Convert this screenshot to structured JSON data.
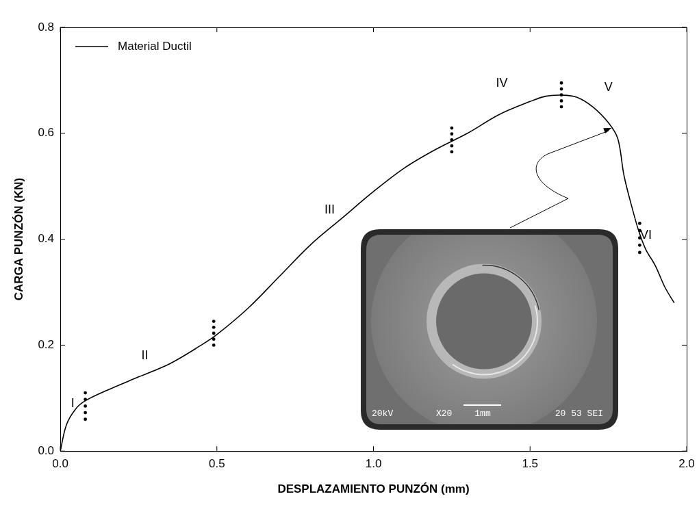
{
  "chart_data": {
    "type": "line",
    "x_label": "DESPLAZAMIENTO PUNZÓN (mm)",
    "y_label": "CARGA PUNZÓN (KN)",
    "x": [
      0,
      0.02,
      0.05,
      0.08,
      0.15,
      0.25,
      0.35,
      0.45,
      0.5,
      0.6,
      0.7,
      0.8,
      0.9,
      1.0,
      1.1,
      1.2,
      1.3,
      1.4,
      1.5,
      1.55,
      1.6,
      1.65,
      1.7,
      1.75,
      1.78,
      1.8,
      1.83,
      1.85,
      1.87,
      1.9,
      1.93,
      1.96
    ],
    "series": [
      {
        "name": "Material Ductil",
        "color": "#000000",
        "values": [
          0,
          0.05,
          0.08,
          0.095,
          0.115,
          0.14,
          0.165,
          0.2,
          0.22,
          0.27,
          0.33,
          0.39,
          0.44,
          0.49,
          0.535,
          0.57,
          0.6,
          0.635,
          0.66,
          0.67,
          0.672,
          0.668,
          0.65,
          0.62,
          0.59,
          0.52,
          0.45,
          0.41,
          0.38,
          0.35,
          0.31,
          0.28
        ]
      }
    ],
    "xlim": [
      0,
      2
    ],
    "xticks": [
      {
        "value": 0,
        "label": "0.0"
      },
      {
        "value": 0.5,
        "label": "0.5"
      },
      {
        "value": 1,
        "label": "1.0"
      },
      {
        "value": 1.5,
        "label": "1.5"
      },
      {
        "value": 2,
        "label": "2.0"
      }
    ],
    "ylim": [
      0,
      0.8
    ],
    "yticks": [
      {
        "value": 0,
        "label": "0.0"
      },
      {
        "value": 0.2,
        "label": "0.2"
      },
      {
        "value": 0.4,
        "label": "0.4"
      },
      {
        "value": 0.6,
        "label": "0.6"
      },
      {
        "value": 0.8,
        "label": "0.8"
      }
    ],
    "grid": false,
    "legend": "upper left",
    "annotations": [
      {
        "text": "I",
        "x": 0.04,
        "y": 0.089
      },
      {
        "text": "II",
        "x": 0.27,
        "y": 0.18
      },
      {
        "text": "III",
        "x": 0.86,
        "y": 0.455
      },
      {
        "text": "IV",
        "x": 1.41,
        "y": 0.694
      },
      {
        "text": "V",
        "x": 1.75,
        "y": 0.686
      },
      {
        "text": "VI",
        "x": 1.87,
        "y": 0.407
      }
    ],
    "stage_markers": [
      {
        "x": 0.08,
        "y": [
          0.06,
          0.11
        ]
      },
      {
        "x": 0.49,
        "y": [
          0.2,
          0.245
        ]
      },
      {
        "x": 1.25,
        "y": [
          0.565,
          0.61
        ]
      },
      {
        "x": 1.6,
        "y": [
          0.65,
          0.695
        ]
      },
      {
        "x": 1.85,
        "y": [
          0.375,
          0.43
        ]
      }
    ],
    "inset": {
      "labels": [
        "20kV",
        "X20",
        "1mm",
        "20 53 SEI"
      ],
      "arrow_to": {
        "x": 1.76,
        "y": 0.61
      }
    }
  }
}
